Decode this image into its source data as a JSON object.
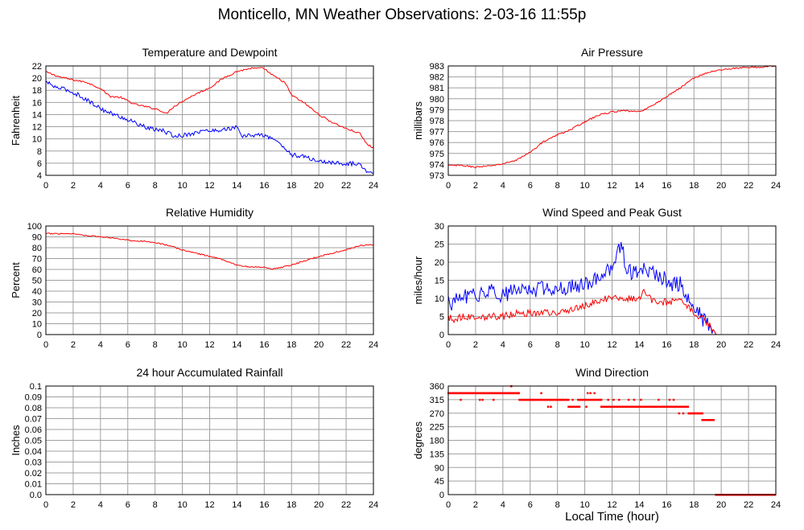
{
  "title": "Monticello, MN Weather Observations: 2-03-16 11:55p",
  "x_axis_title": "Local Time (hour)",
  "colors": {
    "red": "#ff0000",
    "blue": "#0000ff",
    "grid": "#a0a0a0",
    "frame": "#000000"
  },
  "chart_data": [
    {
      "id": "temp",
      "type": "line",
      "title": "Temperature and Dewpoint",
      "ylabel": "Fahrenheit",
      "xlim": [
        0,
        24
      ],
      "ylim": [
        4,
        22
      ],
      "xticks": [
        0,
        2,
        4,
        6,
        8,
        10,
        12,
        14,
        16,
        18,
        20,
        22,
        24
      ],
      "yticks": [
        4,
        6,
        8,
        10,
        12,
        14,
        16,
        18,
        20,
        22
      ],
      "grid": true,
      "series": [
        {
          "color": "#ff0000",
          "style": "line",
          "noise": 0.15,
          "x": [
            0,
            1,
            2,
            3,
            4,
            4.7,
            5.5,
            6.5,
            7.5,
            8.3,
            8.8,
            9.3,
            10,
            11,
            12,
            13,
            14,
            15,
            16,
            16.5,
            17.5,
            18,
            19,
            20,
            21,
            22,
            23,
            23.5,
            24
          ],
          "y": [
            21,
            20.2,
            19.7,
            19.3,
            18.3,
            17.0,
            16.8,
            15.7,
            15.2,
            14.8,
            14.1,
            15.2,
            16.2,
            17.4,
            18.4,
            20,
            21.1,
            21.6,
            21.6,
            20.6,
            19.3,
            17.2,
            15.8,
            14.0,
            12.7,
            11.7,
            10.9,
            9.2,
            8.5
          ]
        },
        {
          "color": "#0000ff",
          "style": "line",
          "noise": 0.35,
          "x": [
            0,
            0.7,
            1.5,
            2.5,
            3.5,
            4.5,
            5.5,
            6.5,
            7.5,
            8.5,
            9.5,
            10.5,
            11.5,
            12.5,
            13.5,
            14,
            14.3,
            15,
            16,
            17,
            17.5,
            18,
            19,
            20,
            21,
            22,
            23,
            23.5,
            24
          ],
          "y": [
            19.4,
            18.5,
            18.1,
            17.1,
            15.7,
            14.4,
            13.6,
            12.7,
            11.7,
            11.4,
            10.4,
            10.8,
            11.3,
            11.4,
            11.7,
            11.9,
            10.4,
            10.6,
            10.6,
            9.6,
            8.4,
            7.4,
            7.0,
            6.3,
            6.1,
            5.9,
            5.9,
            4.8,
            4.5
          ]
        }
      ]
    },
    {
      "id": "pressure",
      "type": "line",
      "title": "Air Pressure",
      "ylabel": "millibars",
      "xlim": [
        0,
        24
      ],
      "ylim": [
        973,
        983
      ],
      "xticks": [
        0,
        2,
        4,
        6,
        8,
        10,
        12,
        14,
        16,
        18,
        20,
        22,
        24
      ],
      "yticks": [
        973,
        974,
        975,
        976,
        977,
        978,
        979,
        980,
        981,
        982,
        983
      ],
      "grid": true,
      "series": [
        {
          "color": "#ff0000",
          "style": "line",
          "noise": 0.07,
          "x": [
            0,
            1,
            2,
            3,
            4,
            5,
            6,
            7,
            8,
            9,
            10,
            11,
            12,
            13,
            14,
            15,
            16,
            17,
            18,
            19,
            20,
            21,
            22,
            23,
            24
          ],
          "y": [
            973.9,
            973.9,
            973.75,
            973.85,
            974.05,
            974.4,
            975.1,
            976.1,
            976.7,
            977.2,
            977.9,
            978.5,
            978.8,
            978.9,
            978.8,
            979.4,
            980.2,
            981.0,
            981.9,
            982.4,
            982.65,
            982.8,
            982.85,
            982.9,
            983.0
          ]
        }
      ]
    },
    {
      "id": "humidity",
      "type": "line",
      "title": "Relative Humidity",
      "ylabel": "Percent",
      "xlim": [
        0,
        24
      ],
      "ylim": [
        0,
        100
      ],
      "xticks": [
        0,
        2,
        4,
        6,
        8,
        10,
        12,
        14,
        16,
        18,
        20,
        22,
        24
      ],
      "yticks": [
        0,
        10,
        20,
        30,
        40,
        50,
        60,
        70,
        80,
        90,
        100
      ],
      "grid": true,
      "series": [
        {
          "color": "#ff0000",
          "style": "line",
          "noise": 0.6,
          "x": [
            0,
            1,
            2,
            2.5,
            4,
            5,
            6,
            7,
            8,
            9,
            10,
            11,
            12,
            13,
            14,
            15,
            16,
            16.5,
            17,
            18,
            19,
            20,
            21,
            22,
            23,
            24
          ],
          "y": [
            93,
            93,
            93,
            92,
            90,
            89,
            87,
            86,
            85,
            82,
            78,
            75,
            72,
            69,
            64,
            62,
            62,
            60,
            61,
            64,
            68,
            72,
            75,
            78,
            82,
            83
          ]
        }
      ]
    },
    {
      "id": "wind",
      "type": "line",
      "title": "Wind Speed and Peak Gust",
      "ylabel": "miles/hour",
      "xlim": [
        0,
        24
      ],
      "ylim": [
        0,
        30
      ],
      "xticks": [
        0,
        2,
        4,
        6,
        8,
        10,
        12,
        14,
        16,
        18,
        20,
        22,
        24
      ],
      "yticks": [
        0,
        5,
        10,
        15,
        20,
        25,
        30
      ],
      "grid": true,
      "series": [
        {
          "color": "#0000ff",
          "style": "line",
          "noise": 2.2,
          "x": [
            0,
            0.3,
            1,
            1.5,
            2,
            3,
            4,
            5,
            5.5,
            6,
            7,
            8,
            9,
            10,
            11,
            11.5,
            12,
            12.7,
            13,
            14,
            15,
            16,
            16.5,
            17,
            17.5,
            18,
            18.5,
            19,
            19.5,
            19.6,
            20,
            22,
            24
          ],
          "y": [
            10,
            8,
            11,
            10,
            11,
            12,
            11,
            12,
            13,
            12,
            13,
            13,
            13,
            14,
            16,
            17,
            18,
            26,
            17,
            18,
            17,
            15,
            14,
            14,
            10,
            7,
            5,
            3,
            1,
            0,
            0,
            0,
            0
          ],
          "noise_end": 19.4
        },
        {
          "color": "#ff0000",
          "style": "line",
          "noise": 1.0,
          "x": [
            0,
            0.3,
            1,
            2,
            3,
            4,
            5,
            6,
            7,
            8,
            9,
            10,
            11,
            11.5,
            12,
            13,
            14,
            14.2,
            15,
            16,
            17,
            17.5,
            18,
            18.5,
            19,
            19.5,
            19.6,
            20,
            22,
            24
          ],
          "y": [
            5,
            4,
            5,
            5,
            5,
            5,
            6,
            6,
            6,
            6,
            7,
            8,
            9,
            10,
            10,
            10,
            10,
            12,
            9,
            9,
            9,
            8,
            6,
            5,
            3,
            1,
            0,
            0,
            0,
            0
          ],
          "noise_end": 19.4
        }
      ]
    },
    {
      "id": "rain",
      "type": "line",
      "title": "24 hour Accumulated Rainfall",
      "ylabel": "Inches",
      "xlim": [
        0,
        24
      ],
      "ylim": [
        0.0,
        0.1
      ],
      "xticks": [
        0,
        2,
        4,
        6,
        8,
        10,
        12,
        14,
        16,
        18,
        20,
        22,
        24
      ],
      "yticks": [
        "0.0",
        "0.01",
        "0.02",
        "0.03",
        "0.04",
        "0.05",
        "0.06",
        "0.07",
        "0.08",
        "0.09",
        "0.1"
      ],
      "grid": true,
      "series": [
        {
          "color": "#ff0000",
          "style": "line",
          "noise": 0,
          "x": [
            0,
            24
          ],
          "y": [
            0,
            0
          ]
        }
      ]
    },
    {
      "id": "winddir",
      "type": "scatter",
      "title": "Wind Direction",
      "ylabel": "degrees",
      "xlim": [
        0,
        24
      ],
      "ylim": [
        0,
        360
      ],
      "xticks": [
        0,
        2,
        4,
        6,
        8,
        10,
        12,
        14,
        16,
        18,
        20,
        22,
        24
      ],
      "yticks": [
        0,
        45,
        90,
        135,
        180,
        225,
        270,
        315,
        360
      ],
      "grid": true,
      "series": [
        {
          "color": "#ff0000",
          "style": "points",
          "segments": [
            {
              "x0": 0.0,
              "x1": 4.5,
              "y": 337
            },
            {
              "x0": 4.5,
              "x1": 5.2,
              "y": 337
            },
            {
              "x0": 5.2,
              "x1": 6.3,
              "y": 315
            },
            {
              "x0": 6.3,
              "x1": 8.8,
              "y": 315
            },
            {
              "x0": 8.8,
              "x1": 9.5,
              "y": 292
            },
            {
              "x0": 9.5,
              "x1": 11.2,
              "y": 315
            },
            {
              "x0": 11.2,
              "x1": 16.8,
              "y": 292
            },
            {
              "x0": 16.8,
              "x1": 17.6,
              "y": 292
            },
            {
              "x0": 17.6,
              "x1": 18.6,
              "y": 270
            },
            {
              "x0": 18.6,
              "x1": 19.5,
              "y": 248
            },
            {
              "x0": 19.6,
              "x1": 24.0,
              "y": 0
            }
          ],
          "extras": [
            {
              "x": 0.9,
              "y": 315
            },
            {
              "x": 2.3,
              "y": 315
            },
            {
              "x": 2.5,
              "y": 315
            },
            {
              "x": 3.3,
              "y": 315
            },
            {
              "x": 4.6,
              "y": 360
            },
            {
              "x": 5.1,
              "y": 337
            },
            {
              "x": 6.8,
              "y": 337
            },
            {
              "x": 7.3,
              "y": 292
            },
            {
              "x": 7.5,
              "y": 292
            },
            {
              "x": 9.6,
              "y": 292
            },
            {
              "x": 10.1,
              "y": 292
            },
            {
              "x": 10.2,
              "y": 337
            },
            {
              "x": 10.4,
              "y": 337
            },
            {
              "x": 10.7,
              "y": 337
            },
            {
              "x": 11.2,
              "y": 315
            },
            {
              "x": 11.7,
              "y": 315
            },
            {
              "x": 12.1,
              "y": 315
            },
            {
              "x": 12.5,
              "y": 315
            },
            {
              "x": 13.2,
              "y": 315
            },
            {
              "x": 13.6,
              "y": 315
            },
            {
              "x": 14.1,
              "y": 315
            },
            {
              "x": 15.4,
              "y": 315
            },
            {
              "x": 16.2,
              "y": 315
            },
            {
              "x": 16.5,
              "y": 315
            },
            {
              "x": 16.9,
              "y": 270
            },
            {
              "x": 17.2,
              "y": 270
            },
            {
              "x": 8.2,
              "y": 315
            },
            {
              "x": 9.1,
              "y": 315
            },
            {
              "x": 14.7,
              "y": 292
            },
            {
              "x": 15.8,
              "y": 292
            }
          ]
        }
      ]
    }
  ]
}
